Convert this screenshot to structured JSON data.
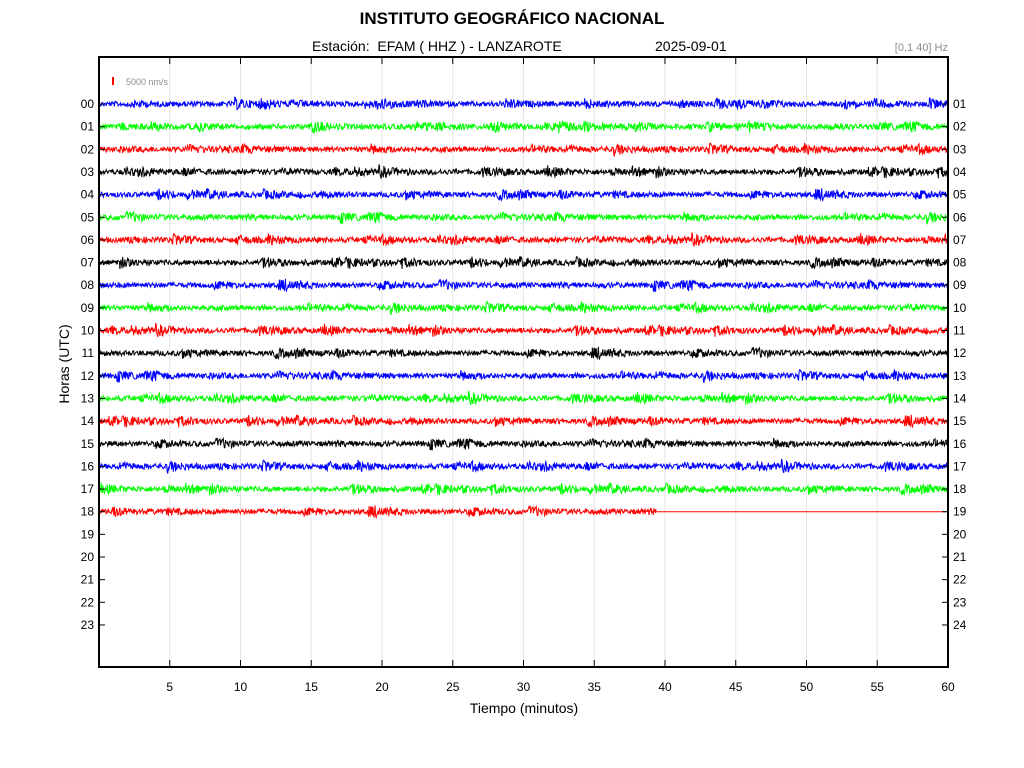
{
  "header": {
    "title": "INSTITUTO GEOGRÁFICO NACIONAL",
    "subtitle": "Estación:  EFAM ( HHZ ) - LANZAROTE",
    "date": "2025-09-01",
    "band": "[0.1 40] Hz"
  },
  "chart_data": {
    "type": "line",
    "title": "INSTITUTO GEOGRÁFICO NACIONAL",
    "xlabel": "Tiempo (minutos)",
    "ylabel": "Horas (UTC)",
    "xlim": [
      0,
      60
    ],
    "x_ticks": [
      "5",
      "10",
      "15",
      "20",
      "25",
      "30",
      "35",
      "40",
      "45",
      "50",
      "55",
      "60"
    ],
    "left_labels": [
      "00",
      "01",
      "02",
      "03",
      "04",
      "05",
      "06",
      "07",
      "08",
      "09",
      "10",
      "11",
      "12",
      "13",
      "14",
      "15",
      "16",
      "17",
      "18",
      "19",
      "20",
      "21",
      "22",
      "23"
    ],
    "right_labels": [
      "01",
      "02",
      "03",
      "04",
      "05",
      "06",
      "07",
      "08",
      "09",
      "10",
      "11",
      "12",
      "13",
      "14",
      "15",
      "16",
      "17",
      "18",
      "19",
      "20",
      "21",
      "22",
      "23",
      "24"
    ],
    "grid": true,
    "scale_bar_label": "5000 nm/s",
    "color_cycle": [
      "#0000ff",
      "#00ff00",
      "#ff0000",
      "#000000"
    ],
    "series": [
      {
        "hour": "00",
        "color": "#0000ff",
        "x_end": 60
      },
      {
        "hour": "01",
        "color": "#00ff00",
        "x_end": 60
      },
      {
        "hour": "02",
        "color": "#ff0000",
        "x_end": 60
      },
      {
        "hour": "03",
        "color": "#000000",
        "x_end": 60
      },
      {
        "hour": "04",
        "color": "#0000ff",
        "x_end": 60
      },
      {
        "hour": "05",
        "color": "#00ff00",
        "x_end": 60
      },
      {
        "hour": "06",
        "color": "#ff0000",
        "x_end": 60
      },
      {
        "hour": "07",
        "color": "#000000",
        "x_end": 60
      },
      {
        "hour": "08",
        "color": "#0000ff",
        "x_end": 60
      },
      {
        "hour": "09",
        "color": "#00ff00",
        "x_end": 60
      },
      {
        "hour": "10",
        "color": "#ff0000",
        "x_end": 60
      },
      {
        "hour": "11",
        "color": "#000000",
        "x_end": 60
      },
      {
        "hour": "12",
        "color": "#0000ff",
        "x_end": 60
      },
      {
        "hour": "13",
        "color": "#00ff00",
        "x_end": 60
      },
      {
        "hour": "14",
        "color": "#ff0000",
        "x_end": 60
      },
      {
        "hour": "15",
        "color": "#000000",
        "x_end": 60
      },
      {
        "hour": "16",
        "color": "#0000ff",
        "x_end": 60
      },
      {
        "hour": "17",
        "color": "#00ff00",
        "x_end": 60
      },
      {
        "hour": "18",
        "color": "#ff0000",
        "x_end": 39.4,
        "flat_to": 60
      }
    ]
  }
}
